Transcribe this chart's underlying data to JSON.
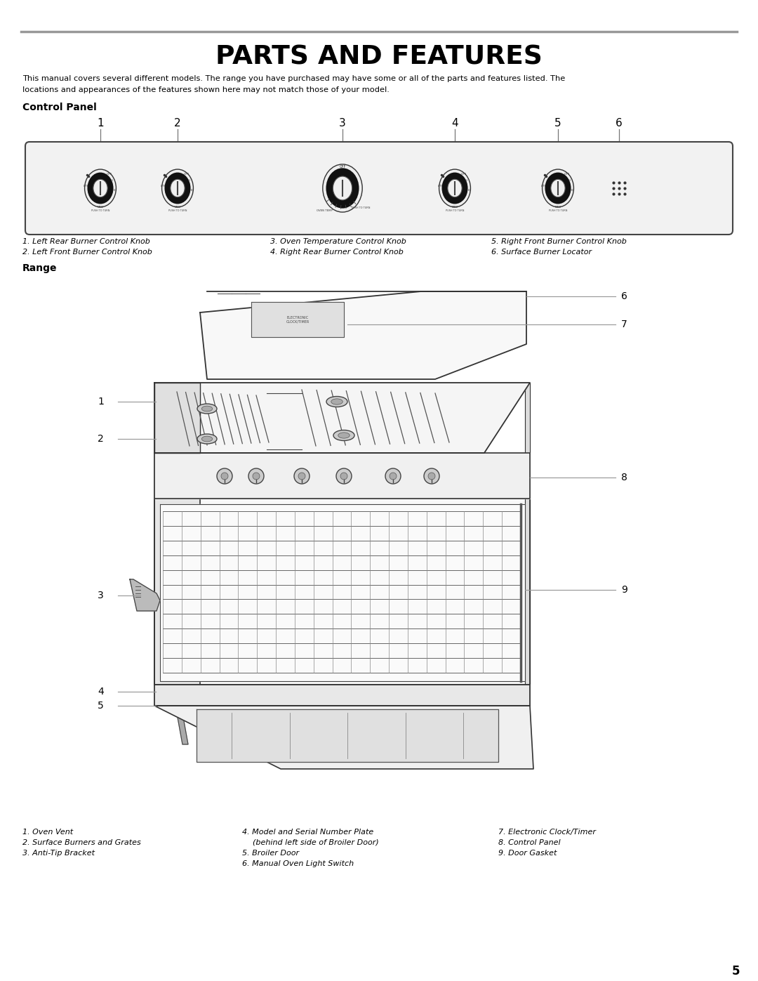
{
  "title": "PARTS AND FEATURES",
  "subtitle_line1": "This manual covers several different models. The range you have purchased may have some or all of the parts and features listed. The",
  "subtitle_line2": "locations and appearances of the features shown here may not match those of your model.",
  "control_panel_label": "Control Panel",
  "range_label": "Range",
  "cp_labels_col1_l1": "1. Left Rear Burner Control Knob",
  "cp_labels_col1_l2": "2. Left Front Burner Control Knob",
  "cp_labels_col2_l1": "3. Oven Temperature Control Knob",
  "cp_labels_col2_l2": "4. Right Rear Burner Control Knob",
  "cp_labels_col3_l1": "5. Right Front Burner Control Knob",
  "cp_labels_col3_l2": "6. Surface Burner Locator",
  "range_items_col1": [
    "1. Oven Vent",
    "2. Surface Burners and Grates",
    "3. Anti-Tip Bracket"
  ],
  "range_items_col2_l1": "4. Model and Serial Number Plate",
  "range_items_col2_l2": "(behind left side of Broiler Door)",
  "range_items_col2_l3": "5. Broiler Door",
  "range_items_col2_l4": "6. Manual Oven Light Switch",
  "range_items_col3": [
    "7. Electronic Clock/Timer",
    "8. Control Panel",
    "9. Door Gasket"
  ],
  "page_number": "5",
  "bg_color": "#ffffff",
  "text_color": "#000000",
  "line_color": "#555555",
  "rule_color": "#999999"
}
